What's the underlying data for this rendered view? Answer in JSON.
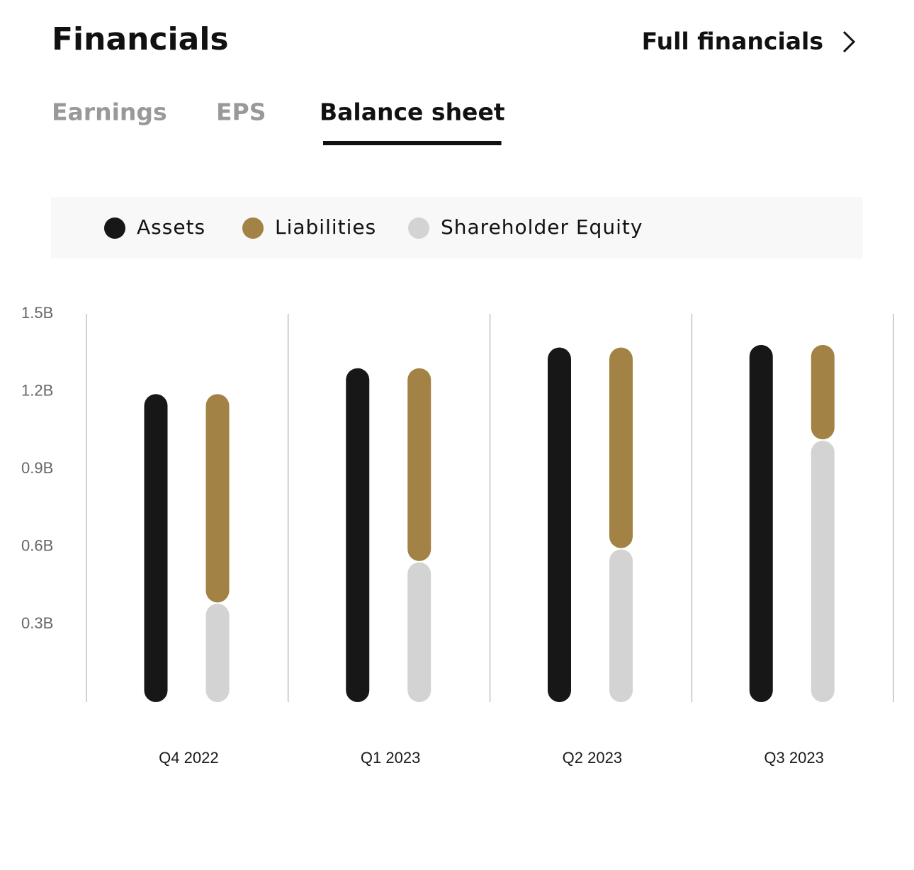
{
  "header": {
    "title": "Financials",
    "link": "Full financials"
  },
  "tabs": [
    "Earnings",
    "EPS",
    "Balance sheet"
  ],
  "active_tab": 2,
  "chart_data": {
    "type": "bar",
    "categories": [
      "Q4 2022",
      "Q1 2023",
      "Q2 2023",
      "Q3 2023"
    ],
    "series": [
      {
        "name": "Assets",
        "color": "#171717",
        "values": [
          1.19,
          1.29,
          1.37,
          1.38
        ]
      },
      {
        "name": "Liabilities",
        "color": "#a38245",
        "values": [
          0.81,
          0.75,
          0.78,
          0.37
        ]
      },
      {
        "name": "Shareholder Equity",
        "color": "#d3d3d3",
        "values": [
          0.38,
          0.54,
          0.59,
          1.01
        ]
      }
    ],
    "ylim": [
      0,
      1.5
    ],
    "yticks": [
      {
        "value": 0.3,
        "label": "0.3B"
      },
      {
        "value": 0.6,
        "label": "0.6B"
      },
      {
        "value": 0.9,
        "label": "0.9B"
      },
      {
        "value": 1.2,
        "label": "1.2B"
      },
      {
        "value": 1.5,
        "label": "1.5B"
      }
    ]
  }
}
